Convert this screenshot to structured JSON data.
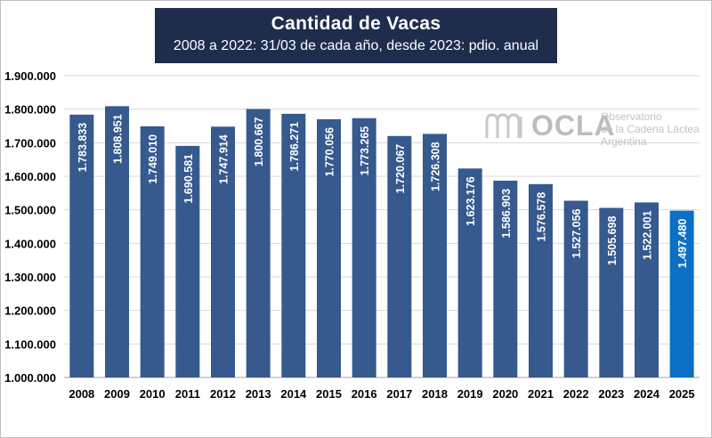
{
  "header": {
    "title": "Cantidad  de Vacas",
    "subtitle": "2008 a 2022: 31/03 de cada año, desde 2023: pdio. anual"
  },
  "watermark": {
    "acronym": "OCLA",
    "line1": "Observatorio",
    "line2": "de la Cadena Láctea",
    "line3": "Argentina"
  },
  "colors": {
    "bar": "#36598e",
    "highlight_bar": "#0b70c6",
    "title_background": "#1f2d4d",
    "gridline": "#d9d9d9"
  },
  "chart_data": {
    "type": "bar",
    "categories": [
      "2008",
      "2009",
      "2010",
      "2011",
      "2012",
      "2013",
      "2014",
      "2015",
      "2016",
      "2017",
      "2018",
      "2019",
      "2020",
      "2021",
      "2022",
      "2023",
      "2024",
      "2025"
    ],
    "values": [
      1783833,
      1808951,
      1749010,
      1690581,
      1747914,
      1800667,
      1786271,
      1770056,
      1773265,
      1720067,
      1726308,
      1623176,
      1586903,
      1576578,
      1527056,
      1505698,
      1522001,
      1497480
    ],
    "data_labels": [
      "1.783.833",
      "1.808.951",
      "1.749.010",
      "1.690.581",
      "1.747.914",
      "1.800.667",
      "1.786.271",
      "1.770.056",
      "1.773.265",
      "1.720.067",
      "1.726.308",
      "1.623.176",
      "1.586.903",
      "1.576.578",
      "1.527.056",
      "1.505.698",
      "1.522.001",
      "1.497.480"
    ],
    "highlight_index": 17,
    "ylim": [
      1000000,
      1900000
    ],
    "yticks": [
      1000000,
      1100000,
      1200000,
      1300000,
      1400000,
      1500000,
      1600000,
      1700000,
      1800000,
      1900000
    ],
    "ytick_labels": [
      "1.000.000",
      "1.100.000",
      "1.200.000",
      "1.300.000",
      "1.400.000",
      "1.500.000",
      "1.600.000",
      "1.700.000",
      "1.800.000",
      "1.900.000"
    ],
    "grid": true,
    "legend": "none",
    "title": "Cantidad  de Vacas",
    "subtitle": "2008 a 2022: 31/03 de cada año, desde 2023: pdio. anual",
    "xlabel": "",
    "ylabel": ""
  }
}
